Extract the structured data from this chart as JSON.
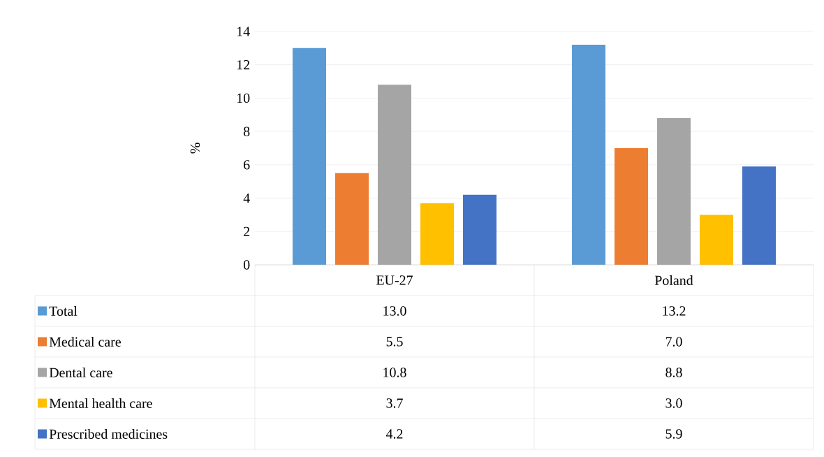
{
  "chart_data": {
    "type": "bar",
    "ylabel": "%",
    "categories": [
      "EU-27",
      "Poland"
    ],
    "series": [
      {
        "name": "Total",
        "color": "#5b9bd5",
        "values": [
          13.0,
          13.2
        ],
        "value_labels": [
          "13.0",
          "13.2"
        ]
      },
      {
        "name": "Medical care",
        "color": "#ed7d31",
        "values": [
          5.5,
          7.0
        ],
        "value_labels": [
          "5.5",
          "7.0"
        ]
      },
      {
        "name": "Dental care",
        "color": "#a5a5a5",
        "values": [
          10.8,
          8.8
        ],
        "value_labels": [
          "10.8",
          "8.8"
        ]
      },
      {
        "name": "Mental health care",
        "color": "#ffc000",
        "values": [
          3.7,
          3.0
        ],
        "value_labels": [
          "3.7",
          "3.0"
        ]
      },
      {
        "name": "Prescribed medicines",
        "color": "#4472c4",
        "values": [
          4.2,
          5.9
        ],
        "value_labels": [
          "4.2",
          "5.9"
        ]
      }
    ],
    "ylim": [
      0,
      14
    ],
    "yticks": [
      0,
      2,
      4,
      6,
      8,
      10,
      12,
      14
    ],
    "grid": "y",
    "legend": "bottom"
  }
}
